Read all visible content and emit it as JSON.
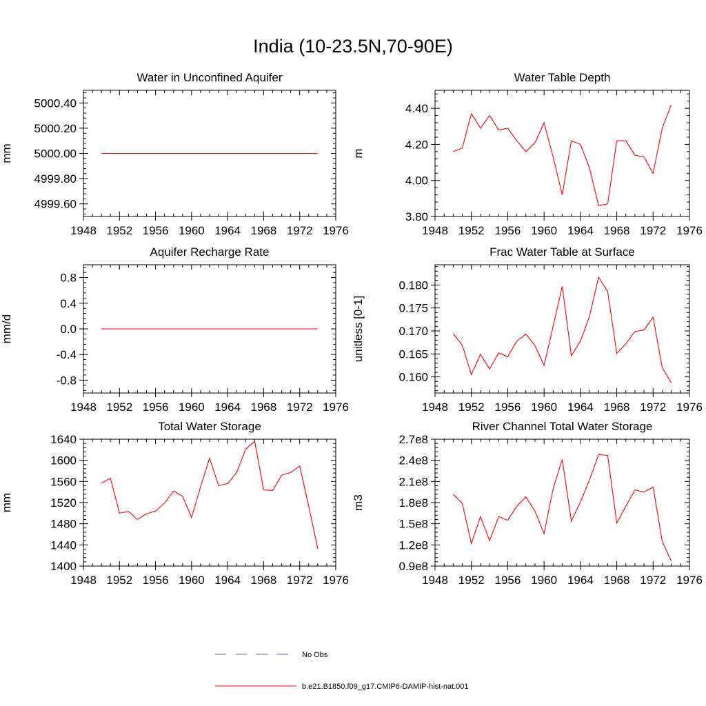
{
  "page": {
    "title": "India (10-23.5N,70-90E)"
  },
  "colors": {
    "model": "#ff0000",
    "obs": "#4a6fb0",
    "axis": "#000000"
  },
  "legend": {
    "items": [
      {
        "label": "No Obs",
        "style": "dashed",
        "color": "#4a6fb0"
      },
      {
        "label": "b.e21.B1850.f09_g17.CMIP6-DAMIP-hist-nat.001",
        "style": "solid",
        "color": "#ff0000"
      }
    ]
  },
  "chart_data": [
    {
      "type": "line",
      "title": "Water in Unconfined Aquifer",
      "ylabel": "mm",
      "xlim": [
        1948,
        1976
      ],
      "xticks": [
        1948,
        1952,
        1956,
        1960,
        1964,
        1968,
        1972,
        1976
      ],
      "ylim": [
        4999.5,
        5000.5
      ],
      "yticks": [
        4999.6,
        4999.8,
        5000.0,
        5000.2,
        5000.4
      ],
      "ytick_labels": [
        "4999.60",
        "4999.80",
        "5000.00",
        "5000.20",
        "5000.40"
      ],
      "series": [
        {
          "x": [
            1950,
            1951,
            1952,
            1953,
            1954,
            1955,
            1956,
            1957,
            1958,
            1959,
            1960,
            1961,
            1962,
            1963,
            1964,
            1965,
            1966,
            1967,
            1968,
            1969,
            1970,
            1971,
            1972,
            1973,
            1974
          ],
          "values": [
            5000,
            5000,
            5000,
            5000,
            5000,
            5000,
            5000,
            5000,
            5000,
            5000,
            5000,
            5000,
            5000,
            5000,
            5000,
            5000,
            5000,
            5000,
            5000,
            5000,
            5000,
            5000,
            5000,
            5000,
            5000
          ]
        }
      ]
    },
    {
      "type": "line",
      "title": "Water Table Depth",
      "ylabel": "m",
      "xlim": [
        1948,
        1976
      ],
      "xticks": [
        1948,
        1952,
        1956,
        1960,
        1964,
        1968,
        1972,
        1976
      ],
      "ylim": [
        3.8,
        4.5
      ],
      "yticks": [
        3.8,
        4.0,
        4.2,
        4.4
      ],
      "ytick_labels": [
        "3.80",
        "4.00",
        "4.20",
        "4.40"
      ],
      "series": [
        {
          "x": [
            1950,
            1951,
            1952,
            1953,
            1954,
            1955,
            1956,
            1957,
            1958,
            1959,
            1960,
            1961,
            1962,
            1963,
            1964,
            1965,
            1966,
            1967,
            1968,
            1969,
            1970,
            1971,
            1972,
            1973,
            1974
          ],
          "values": [
            4.16,
            4.18,
            4.37,
            4.29,
            4.36,
            4.28,
            4.29,
            4.22,
            4.16,
            4.21,
            4.32,
            4.13,
            3.92,
            4.22,
            4.2,
            4.07,
            3.86,
            3.87,
            4.22,
            4.22,
            4.14,
            4.13,
            4.04,
            4.29,
            4.42
          ]
        }
      ]
    },
    {
      "type": "line",
      "title": "Aquifer Recharge Rate",
      "ylabel": "mm/d",
      "xlim": [
        1948,
        1976
      ],
      "xticks": [
        1948,
        1952,
        1956,
        1960,
        1964,
        1968,
        1972,
        1976
      ],
      "ylim": [
        -1.0,
        1.0
      ],
      "yticks": [
        -0.8,
        -0.4,
        0.0,
        0.4,
        0.8
      ],
      "ytick_labels": [
        "-0.8",
        "-0.4",
        "0.0",
        "0.4",
        "0.8"
      ],
      "series": [
        {
          "x": [
            1950,
            1951,
            1952,
            1953,
            1954,
            1955,
            1956,
            1957,
            1958,
            1959,
            1960,
            1961,
            1962,
            1963,
            1964,
            1965,
            1966,
            1967,
            1968,
            1969,
            1970,
            1971,
            1972,
            1973,
            1974
          ],
          "values": [
            0,
            0,
            0,
            0,
            0,
            0,
            0,
            0,
            0,
            0,
            0,
            0,
            0,
            0,
            0,
            0,
            0,
            0,
            0,
            0,
            0,
            0,
            0,
            0,
            0
          ]
        }
      ]
    },
    {
      "type": "line",
      "title": "Frac Water Table at Surface",
      "ylabel": "unitless [0-1]",
      "xlim": [
        1948,
        1976
      ],
      "xticks": [
        1948,
        1952,
        1956,
        1960,
        1964,
        1968,
        1972,
        1976
      ],
      "ylim": [
        0.1565,
        0.1844
      ],
      "yticks": [
        0.16,
        0.165,
        0.17,
        0.175,
        0.18
      ],
      "ytick_labels": [
        "0.160",
        "0.165",
        "0.170",
        "0.175",
        "0.180"
      ],
      "series": [
        {
          "x": [
            1950,
            1951,
            1952,
            1953,
            1954,
            1955,
            1956,
            1957,
            1958,
            1959,
            1960,
            1961,
            1962,
            1963,
            1964,
            1965,
            1966,
            1967,
            1968,
            1969,
            1970,
            1971,
            1972,
            1973,
            1974
          ],
          "values": [
            0.1694,
            0.1669,
            0.1605,
            0.1649,
            0.1617,
            0.1652,
            0.1644,
            0.1678,
            0.1693,
            0.1668,
            0.1625,
            0.171,
            0.1797,
            0.1646,
            0.1678,
            0.1732,
            0.1817,
            0.1786,
            0.1651,
            0.1672,
            0.1699,
            0.1702,
            0.173,
            0.162,
            0.1587
          ]
        }
      ]
    },
    {
      "type": "line",
      "title": "Total Water Storage",
      "ylabel": "mm",
      "xlim": [
        1948,
        1976
      ],
      "xticks": [
        1948,
        1952,
        1956,
        1960,
        1964,
        1968,
        1972,
        1976
      ],
      "ylim": [
        1400,
        1640
      ],
      "yticks": [
        1400,
        1440,
        1480,
        1520,
        1560,
        1600,
        1640
      ],
      "ytick_labels": [
        "1400",
        "1440",
        "1480",
        "1520",
        "1560",
        "1600",
        "1640"
      ],
      "series": [
        {
          "x": [
            1950,
            1951,
            1952,
            1953,
            1954,
            1955,
            1956,
            1957,
            1958,
            1959,
            1960,
            1961,
            1962,
            1963,
            1964,
            1965,
            1966,
            1967,
            1968,
            1969,
            1970,
            1971,
            1972,
            1973,
            1974
          ],
          "values": [
            1557,
            1566,
            1500,
            1503,
            1488,
            1499,
            1504,
            1519,
            1542,
            1532,
            1492,
            1550,
            1604,
            1552,
            1556,
            1577,
            1621,
            1636,
            1544,
            1543,
            1572,
            1577,
            1589,
            1513,
            1433
          ]
        }
      ]
    },
    {
      "type": "line",
      "title": "River Channel Total Water Storage",
      "ylabel": "m3",
      "xlim": [
        1948,
        1976
      ],
      "xticks": [
        1948,
        1952,
        1956,
        1960,
        1964,
        1968,
        1972,
        1976
      ],
      "ylim": [
        0.9,
        2.7
      ],
      "yticks": [
        0.9,
        1.2,
        1.5,
        1.8,
        2.1,
        2.4,
        2.7
      ],
      "ytick_labels": [
        "0.9e8",
        "1.2e8",
        "1.5e8",
        "1.8e8",
        "2.1e8",
        "2.4e8",
        "2.7e8"
      ],
      "series": [
        {
          "x": [
            1950,
            1951,
            1952,
            1953,
            1954,
            1955,
            1956,
            1957,
            1958,
            1959,
            1960,
            1961,
            1962,
            1963,
            1964,
            1965,
            1966,
            1967,
            1968,
            1969,
            1970,
            1971,
            1972,
            1973,
            1974
          ],
          "values": [
            1.92,
            1.79,
            1.22,
            1.6,
            1.26,
            1.6,
            1.55,
            1.75,
            1.88,
            1.68,
            1.36,
            2.0,
            2.41,
            1.54,
            1.81,
            2.12,
            2.48,
            2.47,
            1.51,
            1.75,
            1.98,
            1.95,
            2.02,
            1.25,
            0.97
          ]
        }
      ]
    }
  ]
}
